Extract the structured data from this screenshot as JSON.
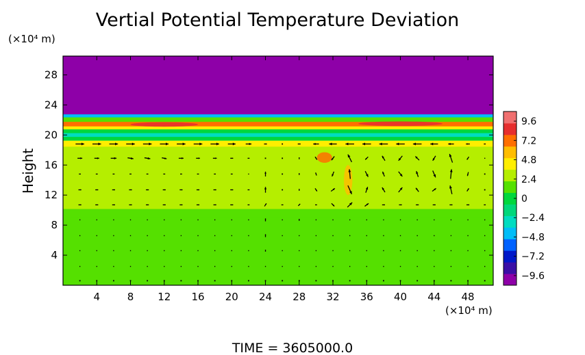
{
  "chart_data": {
    "type": "heatmap",
    "title": "Vertial Potential Temperature Deviation",
    "ylabel": "Height",
    "x_unit": "(×10⁴ m)",
    "y_unit": "(×10⁴ m)",
    "xlim": [
      0,
      51
    ],
    "ylim": [
      0,
      30.5
    ],
    "x_ticks": [
      4,
      8,
      12,
      16,
      20,
      24,
      28,
      32,
      36,
      40,
      44,
      48
    ],
    "y_ticks": [
      4,
      8,
      12,
      16,
      20,
      24,
      28
    ],
    "colorbar": {
      "range": [
        -10.8,
        10.8
      ],
      "ticks": [
        9.6,
        7.2,
        4.8,
        2.4,
        0,
        -2.4,
        -4.8,
        -7.2,
        -9.6
      ],
      "tick_labels": [
        "9.6",
        "7.2",
        "4.8",
        "2.4",
        "0",
        "−2.4",
        "−4.8",
        "−7.2",
        "−9.6"
      ],
      "colors": [
        "#8e00a8",
        "#3a0fa6",
        "#0018c8",
        "#0062ff",
        "#00bdf7",
        "#00dcc0",
        "#00d77a",
        "#00d73d",
        "#55e000",
        "#b5ee00",
        "#ffee00",
        "#ffbd00",
        "#ff6f00",
        "#e62e2e",
        "#f07070"
      ]
    },
    "bands": [
      {
        "y0": 0,
        "y1": 9.0,
        "value": 1.2
      },
      {
        "y0": 9.0,
        "y1": 10.2,
        "value": 1.7
      },
      {
        "y0": 10.2,
        "y1": 16.0,
        "value": 2.6
      },
      {
        "y0": 16.0,
        "y1": 18.5,
        "value": 3.4
      },
      {
        "y0": 18.5,
        "y1": 19.3,
        "value": 4.6
      },
      {
        "y0": 19.3,
        "y1": 19.8,
        "value": 0
      },
      {
        "y0": 19.8,
        "y1": 20.3,
        "value": -3.6
      },
      {
        "y0": 20.3,
        "y1": 20.8,
        "value": 0.4
      },
      {
        "y0": 20.8,
        "y1": 21.2,
        "value": 3.8
      },
      {
        "y0": 21.2,
        "y1": 21.8,
        "value": 7.2
      },
      {
        "y0": 21.8,
        "y1": 22.4,
        "value": 1.5
      },
      {
        "y0": 22.4,
        "y1": 22.8,
        "value": -4.5
      },
      {
        "y0": 22.8,
        "y1": 30.5,
        "value": -9.8
      }
    ],
    "hotspots": [
      {
        "x": 31.0,
        "y": 17.0,
        "rx": 0.9,
        "ry": 0.7,
        "value": 7.0
      },
      {
        "x": 33.8,
        "y": 14.0,
        "rx": 0.5,
        "ry": 2.0,
        "value": 6.0
      },
      {
        "x": 12.0,
        "y": 21.4,
        "rx": 4.0,
        "ry": 0.3,
        "value": 8.0
      },
      {
        "x": 40.0,
        "y": 21.5,
        "rx": 5.0,
        "ry": 0.3,
        "value": 8.0
      }
    ],
    "vectors": {
      "x": [
        2,
        4,
        6,
        8,
        10,
        12,
        14,
        16,
        18,
        20,
        22,
        24,
        26,
        28,
        30,
        32,
        34,
        36,
        38,
        40,
        42,
        44,
        46,
        48,
        50
      ],
      "rows": [
        {
          "y": 18.8,
          "u": [
            0.9,
            0.9,
            0.9,
            0.9,
            0.9,
            0.9,
            0.9,
            0.9,
            0.9,
            0.8,
            0.6,
            0.3,
            0,
            -0.3,
            -0.6,
            -0.8,
            -0.9,
            -0.9,
            -0.9,
            -0.9,
            -0.9,
            -0.8,
            -0.6,
            -0.4,
            -0.2
          ],
          "v": [
            0,
            0,
            0,
            0,
            0,
            0,
            0,
            0,
            0,
            0,
            0,
            0,
            0,
            0,
            0,
            0,
            0,
            0,
            0,
            0,
            0,
            0,
            0,
            0,
            0
          ]
        },
        {
          "y": 16.9,
          "u": [
            0.5,
            0.5,
            0.6,
            0.6,
            0.6,
            0.5,
            0.5,
            0.4,
            0.4,
            0.3,
            0.2,
            0,
            0,
            0,
            -0.2,
            -0.3,
            -0.4,
            -0.3,
            -0.3,
            -0.4,
            -0.4,
            -0.3,
            -0.3,
            -0.2,
            -0.1
          ],
          "v": [
            0,
            0,
            0,
            -0.1,
            -0.1,
            -0.1,
            0,
            0,
            0,
            0,
            0,
            0,
            0,
            0.2,
            0.3,
            -0.4,
            0.8,
            -0.3,
            0.5,
            -0.5,
            0.4,
            -0.5,
            0.9,
            -0.3,
            0
          ]
        },
        {
          "y": 14.8,
          "u": [
            0.2,
            0.2,
            0.2,
            0.2,
            0.2,
            0.2,
            0.2,
            0.2,
            0.2,
            0.2,
            0.1,
            0,
            0,
            0,
            -0.1,
            -0.2,
            -0.1,
            0.3,
            -0.2,
            0.4,
            -0.2,
            0.3,
            0.1,
            -0.1,
            0
          ],
          "v": [
            0,
            0,
            0,
            0,
            0,
            0,
            0,
            0,
            0,
            0,
            0,
            0.5,
            0,
            0.2,
            0.3,
            -0.5,
            1.0,
            -0.6,
            0.5,
            -0.5,
            0.6,
            -0.7,
            1.0,
            -0.4,
            0
          ]
        },
        {
          "y": 12.7,
          "u": [
            0.3,
            0.3,
            0.3,
            0.3,
            0.3,
            0.3,
            0.3,
            0.3,
            0.3,
            0.3,
            0.2,
            0,
            0,
            0,
            0.2,
            0.4,
            0.4,
            0.2,
            -0.3,
            0.4,
            -0.3,
            0.4,
            -0.2,
            0.2,
            0
          ],
          "v": [
            0,
            0,
            0,
            0,
            0,
            0,
            0,
            0,
            0,
            0,
            0,
            0.6,
            0,
            0.2,
            -0.3,
            0.3,
            -0.9,
            0.6,
            0.5,
            0.5,
            0.4,
            0.3,
            0.9,
            0.3,
            0
          ]
        },
        {
          "y": 10.7,
          "u": [
            0.3,
            0.3,
            0.3,
            0.3,
            0.3,
            0.3,
            0.3,
            0.3,
            0.3,
            0.3,
            0.2,
            0.2,
            0.2,
            0.2,
            0.2,
            0.3,
            0.5,
            0.4,
            0.3,
            0.3,
            0.3,
            0.3,
            0.3,
            0.3,
            0.2
          ],
          "v": [
            0,
            0,
            0,
            0,
            0,
            0,
            0,
            0,
            0,
            0,
            0,
            0.3,
            0,
            0.2,
            0,
            -0.3,
            0.5,
            0.3,
            0,
            0,
            0,
            0,
            0,
            0,
            0
          ]
        },
        {
          "y": 8.7,
          "u": [
            0,
            0,
            0,
            0,
            0,
            0,
            0,
            0,
            0,
            0,
            0,
            0,
            0,
            0,
            0,
            0,
            0,
            0,
            0,
            0,
            0,
            0,
            0,
            0,
            0
          ],
          "v": [
            0.1,
            0.1,
            0.1,
            0.1,
            0.1,
            0.1,
            0.1,
            0.1,
            0.1,
            0.1,
            0.1,
            0.3,
            0.1,
            0.2,
            0.1,
            0.1,
            0.1,
            0.1,
            0.1,
            0.1,
            0.1,
            0.1,
            0.1,
            0.1,
            0.1
          ]
        },
        {
          "y": 6.6,
          "u": [
            0,
            0,
            0,
            0,
            0,
            0,
            0,
            0,
            0,
            0,
            0,
            0,
            0,
            0,
            0,
            0,
            0,
            0,
            0,
            0,
            0,
            0,
            0,
            0,
            0
          ],
          "v": [
            0.1,
            0.1,
            0.1,
            0.1,
            0.1,
            0.1,
            0.1,
            0.1,
            0.1,
            0.1,
            0.1,
            0.3,
            0.1,
            0.1,
            0.1,
            0.1,
            0.1,
            0.1,
            0.1,
            0.1,
            0.1,
            0.1,
            0.1,
            0.1,
            0.1
          ]
        },
        {
          "y": 4.6,
          "u": [
            0,
            0,
            0,
            0,
            0,
            0,
            0,
            0,
            0,
            0,
            0,
            0,
            0,
            0,
            0,
            0,
            0,
            0,
            0,
            0,
            0,
            0,
            0,
            0,
            0
          ],
          "v": [
            0.1,
            0.1,
            0.1,
            0.1,
            0.1,
            0.1,
            0.1,
            0.1,
            0.1,
            0.1,
            0.1,
            0.2,
            0.1,
            0.1,
            0.1,
            0.1,
            0.1,
            0.1,
            0.1,
            0.1,
            0.1,
            0.1,
            0.1,
            0.1,
            0.1
          ]
        },
        {
          "y": 2.5,
          "u": [
            0,
            0,
            0,
            0,
            0,
            0,
            0,
            0,
            0,
            0,
            0,
            0,
            0,
            0,
            0,
            0,
            0,
            0,
            0,
            0,
            0,
            0,
            0,
            0,
            0
          ],
          "v": [
            0.1,
            0.1,
            0.1,
            0.1,
            0.1,
            0.1,
            0.1,
            0.1,
            0.1,
            0.1,
            0.1,
            0.1,
            0.1,
            0.1,
            0.1,
            0.1,
            0.1,
            0.1,
            0.1,
            0.1,
            0.1,
            0.1,
            0.1,
            0.1,
            0.1
          ]
        },
        {
          "y": 0.6,
          "u": [
            0,
            0,
            0,
            0,
            0,
            0,
            0,
            0,
            0,
            0,
            0,
            0,
            0,
            0,
            0,
            0,
            0,
            0,
            0,
            0,
            0,
            0,
            0,
            0,
            0
          ],
          "v": [
            0.05,
            0.05,
            0.05,
            0.05,
            0.05,
            0.05,
            0.05,
            0.05,
            0.05,
            0.05,
            0.05,
            0.05,
            0.05,
            0.05,
            0.05,
            0.05,
            0.05,
            0.05,
            0.05,
            0.05,
            0.05,
            0.05,
            0.05,
            0.05,
            0.05
          ]
        }
      ]
    }
  },
  "footer": {
    "time_text": "TIME  =  3605000.0"
  }
}
